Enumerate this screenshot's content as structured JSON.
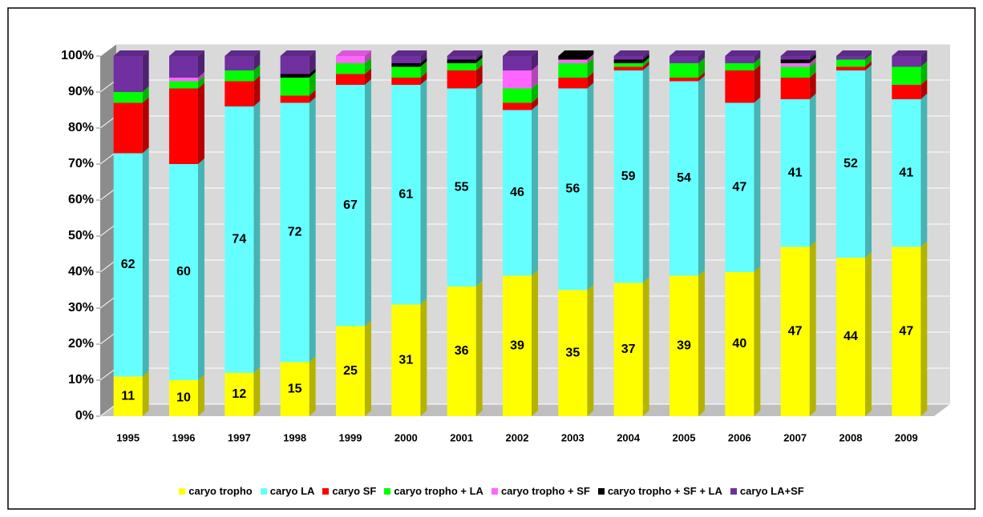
{
  "chart_data": {
    "type": "stacked_bar_3d",
    "categories": [
      "1995",
      "1996",
      "1997",
      "1998",
      "1999",
      "2000",
      "2001",
      "2002",
      "2003",
      "2004",
      "2005",
      "2006",
      "2007",
      "2008",
      "2009"
    ],
    "series": [
      {
        "name": "caryo tropho",
        "color": "#ffff00",
        "labels": true,
        "values": [
          11,
          10,
          12,
          15,
          25,
          31,
          36,
          39,
          35,
          37,
          39,
          40,
          47,
          44,
          47
        ]
      },
      {
        "name": "caryo LA",
        "color": "#66ffff",
        "labels": true,
        "values": [
          62,
          60,
          74,
          72,
          67,
          61,
          55,
          46,
          56,
          59,
          54,
          47,
          41,
          52,
          41
        ]
      },
      {
        "name": "caryo SF",
        "color": "#ff0000",
        "values": [
          14,
          21,
          7,
          2,
          3,
          2,
          5,
          2,
          3,
          1,
          1,
          9,
          6,
          1,
          4
        ]
      },
      {
        "name": "caryo tropho + LA",
        "color": "#00ff00",
        "values": [
          3,
          2,
          3,
          5,
          3,
          3,
          2,
          4,
          4,
          1,
          4,
          2,
          3,
          2,
          5
        ]
      },
      {
        "name": "caryo tropho + SF",
        "color": "#ff66ff",
        "values": [
          0,
          1,
          0,
          0,
          2,
          0,
          0,
          5,
          1,
          0,
          0,
          0,
          1,
          0,
          0
        ]
      },
      {
        "name": "caryo tropho + SF + LA",
        "color": "#000000",
        "values": [
          0,
          0,
          0,
          1,
          0,
          1,
          1,
          0,
          1,
          1,
          0,
          0,
          1,
          0,
          0
        ]
      },
      {
        "name": "caryo LA+SF",
        "color": "#7030a0",
        "values": [
          10,
          6,
          4,
          5,
          0,
          2,
          1,
          4,
          0,
          1,
          2,
          2,
          1,
          1,
          3
        ]
      }
    ],
    "ylim": [
      0,
      100
    ],
    "yticks": [
      {
        "value": 0,
        "label": "0%"
      },
      {
        "value": 10,
        "label": "10%"
      },
      {
        "value": 20,
        "label": "20%"
      },
      {
        "value": 30,
        "label": "30%"
      },
      {
        "value": 40,
        "label": "40%"
      },
      {
        "value": 50,
        "label": "50%"
      },
      {
        "value": 60,
        "label": "60%"
      },
      {
        "value": 70,
        "label": "70%"
      },
      {
        "value": 80,
        "label": "80%"
      },
      {
        "value": 90,
        "label": "90%"
      },
      {
        "value": 100,
        "label": "100%"
      }
    ],
    "grid": true
  }
}
